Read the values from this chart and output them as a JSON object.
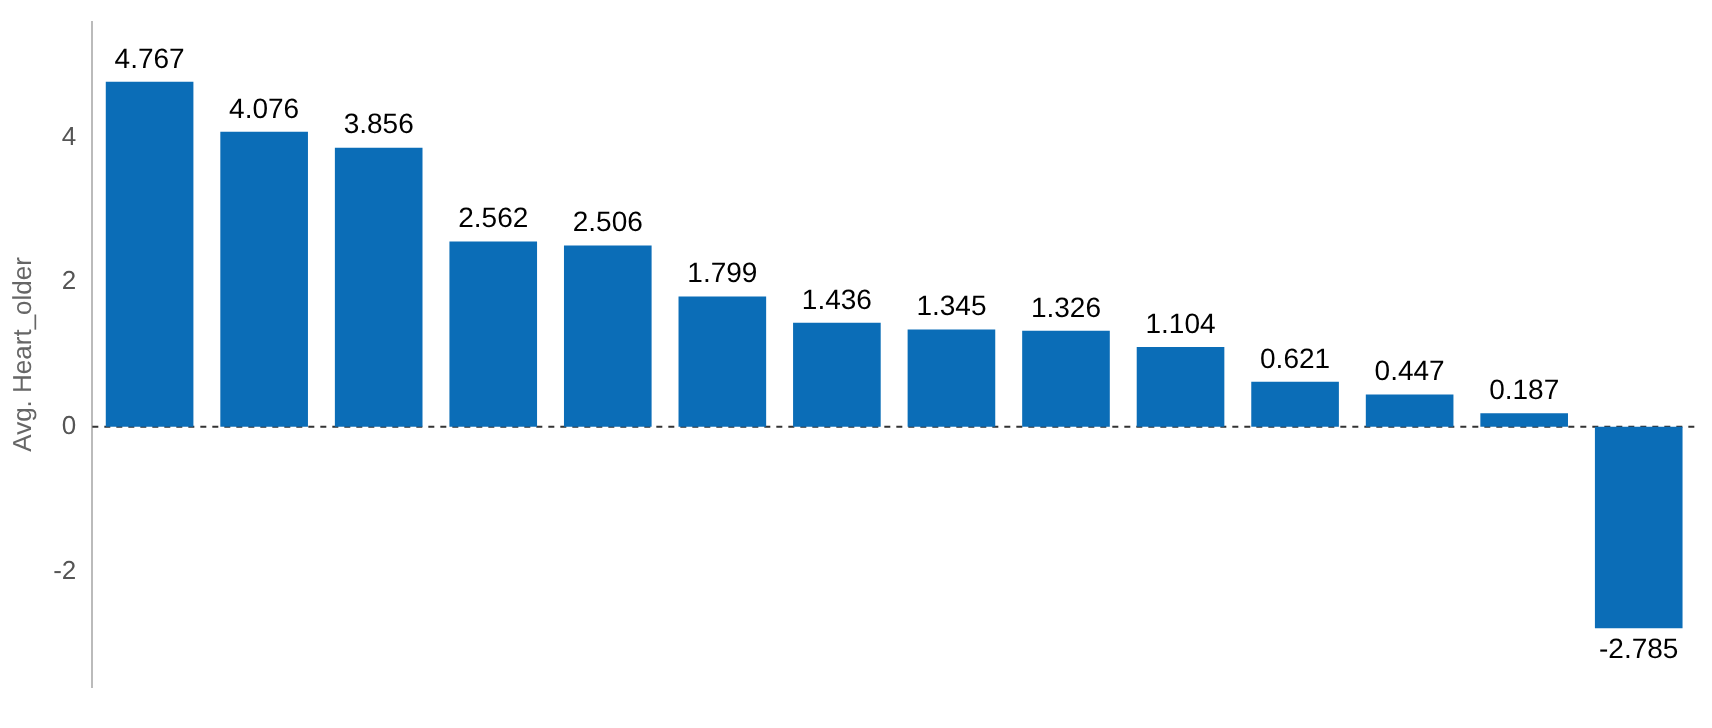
{
  "chart_data": {
    "type": "bar",
    "ylabel": "Avg. Heart_older",
    "categories": [
      null,
      null,
      null,
      null,
      null,
      null,
      null,
      null,
      null,
      null,
      null,
      null,
      null,
      null
    ],
    "values": [
      4.767,
      4.076,
      3.856,
      2.562,
      2.506,
      1.799,
      1.436,
      1.345,
      1.326,
      1.104,
      0.621,
      0.447,
      0.187,
      -2.785
    ],
    "color": "#0b6db7",
    "ylim": [
      -3.6,
      5.6
    ],
    "yticks": [
      -2,
      0,
      2,
      4
    ],
    "grid": false,
    "data_labels": true,
    "ref_lines": [
      {
        "axis": "y",
        "value": 0,
        "color": "#333333",
        "line_style": "dashed"
      }
    ]
  }
}
